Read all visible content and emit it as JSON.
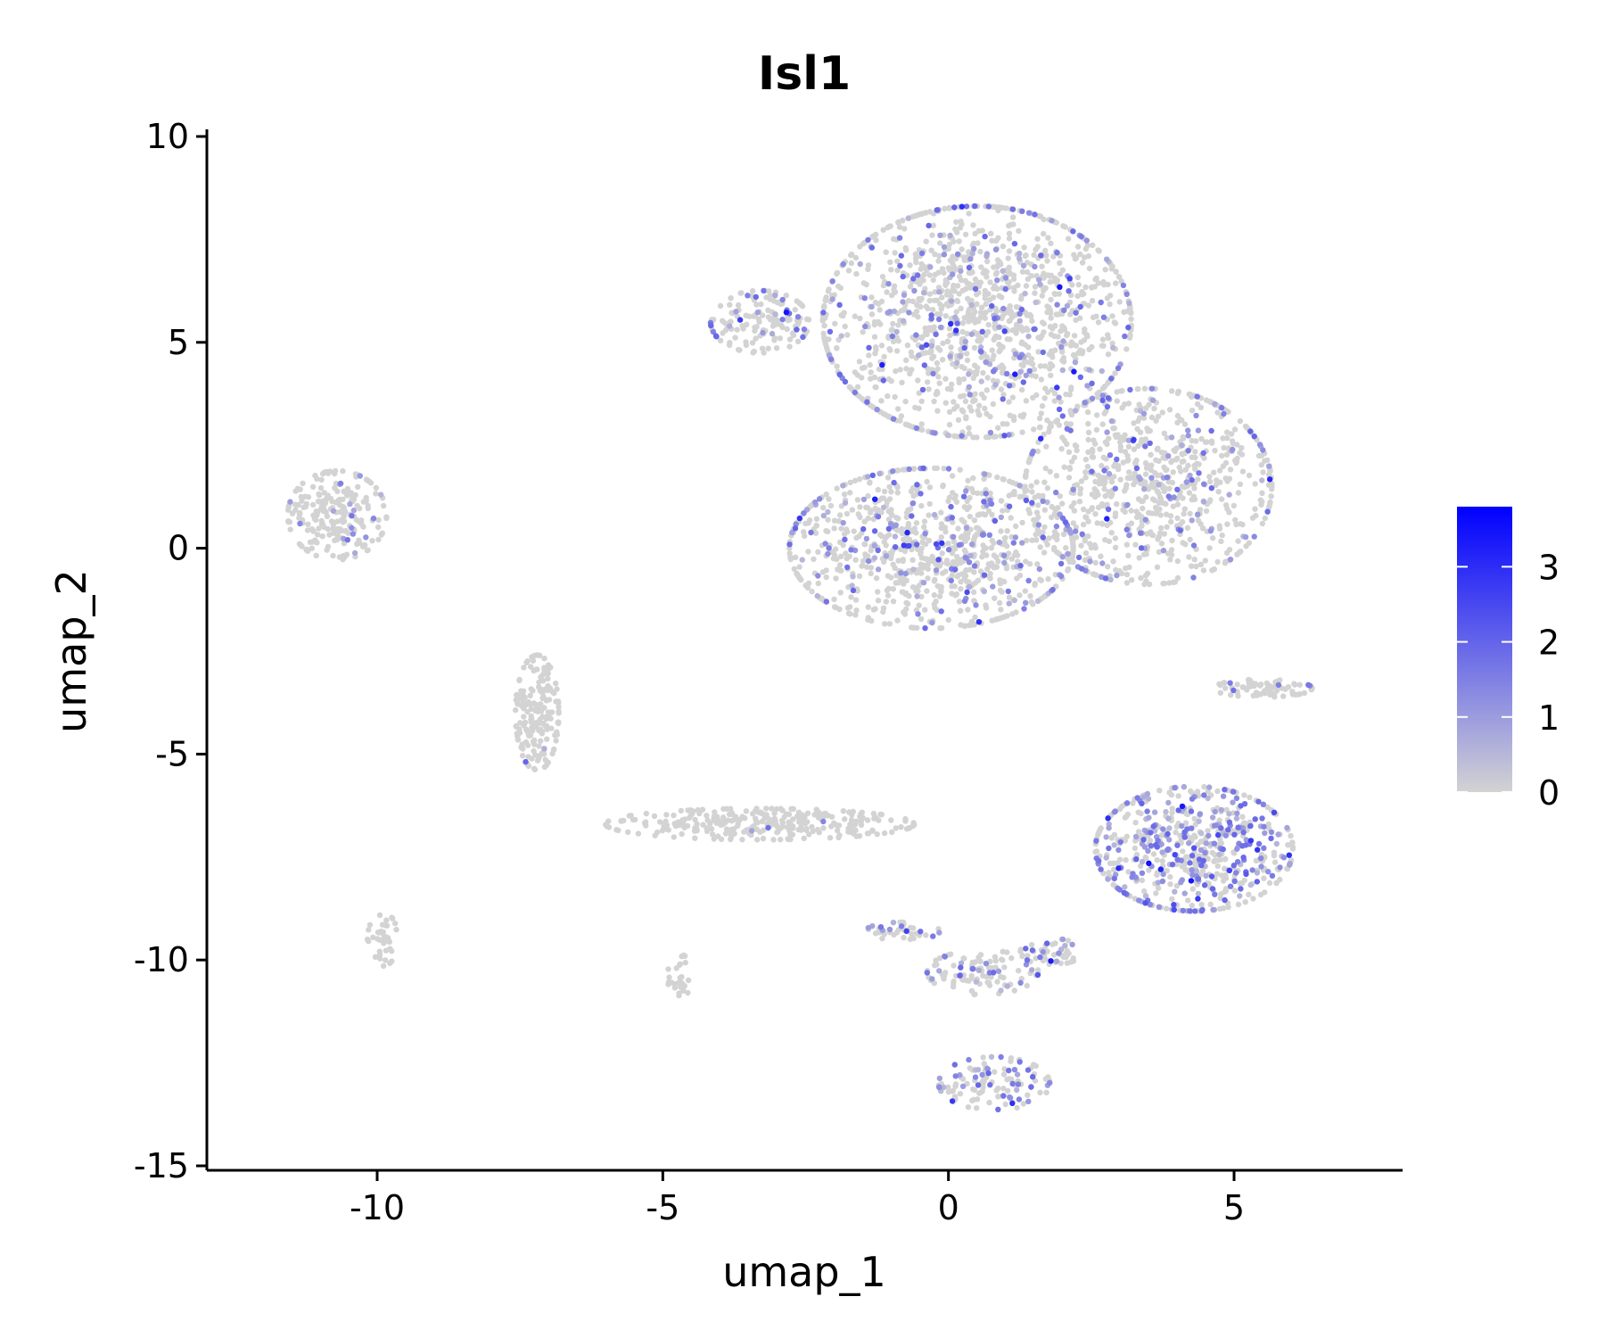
{
  "chart_data": {
    "type": "scatter",
    "title": "Isl1",
    "xlabel": "umap_1",
    "ylabel": "umap_2",
    "xlim": [
      -13,
      8
    ],
    "ylim": [
      -15,
      10
    ],
    "xticks": [
      "-10",
      "-5",
      "0",
      "5"
    ],
    "xtick_values": [
      -10,
      -5,
      0,
      5
    ],
    "yticks": [
      "10",
      "5",
      "0",
      "-5",
      "-10",
      "-15"
    ],
    "ytick_values": [
      10,
      5,
      0,
      -5,
      -10,
      -15
    ],
    "grid": false,
    "point_color_low": "#d3d3d3",
    "point_color_high": "#0000ff",
    "colorbar": {
      "range": [
        0,
        3.8
      ],
      "ticks": [
        "3",
        "2",
        "1",
        "0"
      ],
      "tick_values": [
        3,
        2,
        1,
        0
      ],
      "placement": "right"
    },
    "clusters": [
      {
        "center": [
          0.5,
          5.5
        ],
        "spread": [
          2.5,
          2.6
        ],
        "count": 1300,
        "expr_mean": 0.25
      },
      {
        "center": [
          3.5,
          1.5
        ],
        "spread": [
          2.0,
          2.2
        ],
        "count": 800,
        "expr_mean": 0.25
      },
      {
        "center": [
          -0.3,
          0.0
        ],
        "spread": [
          2.3,
          1.8
        ],
        "count": 900,
        "expr_mean": 0.3
      },
      {
        "center": [
          -3.3,
          5.5
        ],
        "spread": [
          0.8,
          0.7
        ],
        "count": 150,
        "expr_mean": 0.2
      },
      {
        "center": [
          -10.7,
          0.8
        ],
        "spread": [
          0.8,
          1.0
        ],
        "count": 220,
        "expr_mean": 0.1
      },
      {
        "center": [
          4.3,
          -7.3
        ],
        "spread": [
          1.6,
          1.4
        ],
        "count": 600,
        "expr_mean": 0.7
      },
      {
        "center": [
          5.5,
          -3.4
        ],
        "spread": [
          0.8,
          0.2
        ],
        "count": 80,
        "expr_mean": 0.1
      },
      {
        "center": [
          -7.2,
          -4.0
        ],
        "spread": [
          0.35,
          1.3
        ],
        "count": 180,
        "expr_mean": 0.02
      },
      {
        "center": [
          -3.3,
          -6.7
        ],
        "spread": [
          2.5,
          0.35
        ],
        "count": 300,
        "expr_mean": 0.02
      },
      {
        "center": [
          -9.9,
          -9.5
        ],
        "spread": [
          0.25,
          0.6
        ],
        "count": 40,
        "expr_mean": 0.02
      },
      {
        "center": [
          -4.7,
          -10.4
        ],
        "spread": [
          0.2,
          0.5
        ],
        "count": 30,
        "expr_mean": 0.02
      },
      {
        "center": [
          0.8,
          -13.0
        ],
        "spread": [
          0.9,
          0.6
        ],
        "count": 120,
        "expr_mean": 0.5
      },
      {
        "center": [
          0.6,
          -10.3
        ],
        "spread": [
          0.9,
          0.5
        ],
        "count": 100,
        "expr_mean": 0.4
      },
      {
        "center": [
          -0.8,
          -9.3
        ],
        "spread": [
          0.6,
          0.2
        ],
        "count": 40,
        "expr_mean": 0.6
      },
      {
        "center": [
          1.8,
          -9.8
        ],
        "spread": [
          0.5,
          0.3
        ],
        "count": 50,
        "expr_mean": 0.4
      }
    ]
  }
}
